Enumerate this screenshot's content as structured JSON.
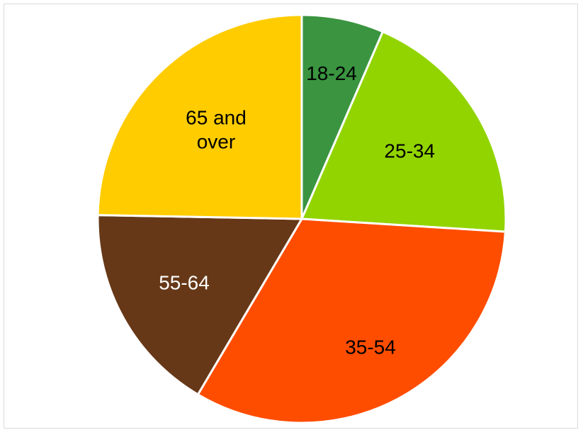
{
  "chart_data": {
    "type": "pie",
    "title": "",
    "legend": "none",
    "slices": [
      {
        "label": "18-24",
        "value": 6.5,
        "color": "#3a9440",
        "text_color": "#000000",
        "label_lines": [
          "18-24"
        ]
      },
      {
        "label": "25-34",
        "value": 19.5,
        "color": "#92d400",
        "text_color": "#000000",
        "label_lines": [
          "25-34"
        ]
      },
      {
        "label": "35-54",
        "value": 32.5,
        "color": "#ff4d00",
        "text_color": "#000000",
        "label_lines": [
          "35-54"
        ]
      },
      {
        "label": "55-64",
        "value": 16.8,
        "color": "#663817",
        "text_color": "#ffffff",
        "label_lines": [
          "55-64"
        ]
      },
      {
        "label": "65 and over",
        "value": 24.7,
        "color": "#ffcc00",
        "text_color": "#000000",
        "label_lines": [
          "65 and",
          "over"
        ]
      }
    ]
  }
}
